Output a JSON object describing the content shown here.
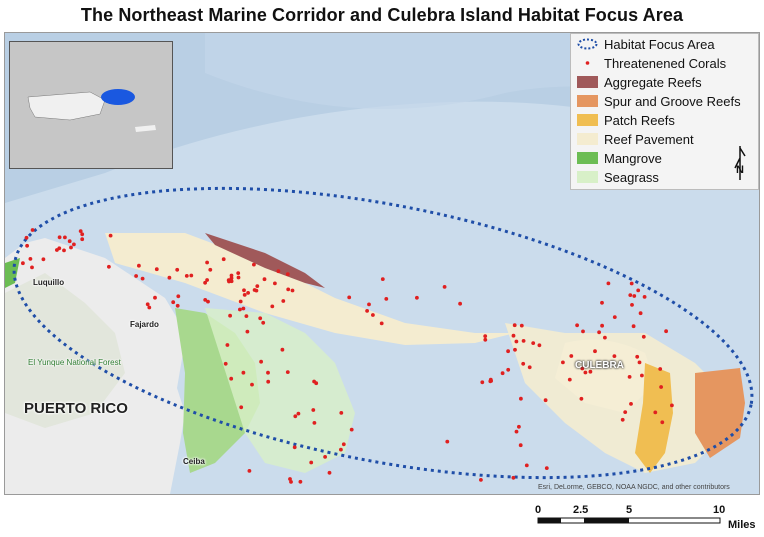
{
  "title": "The Northeast Marine Corridor and Culebra Island Habitat Focus Area",
  "legend": {
    "items": [
      {
        "label": "Habitat Focus Area",
        "symbol": "dashed-ellipse",
        "color": "#1f4ea8"
      },
      {
        "label": "Threatenened Corals",
        "symbol": "dot",
        "color": "#e02020"
      },
      {
        "label": "Aggregate Reefs",
        "symbol": "fill",
        "color": "#a0595a"
      },
      {
        "label": "Spur and Groove Reefs",
        "symbol": "fill",
        "color": "#e59660"
      },
      {
        "label": "Patch Reefs",
        "symbol": "fill",
        "color": "#f0be52"
      },
      {
        "label": "Reef Pavement",
        "symbol": "fill",
        "color": "#f4ecd0"
      },
      {
        "label": "Mangrove",
        "symbol": "fill",
        "color": "#6cbd54"
      },
      {
        "label": "Seagrass",
        "symbol": "fill",
        "color": "#d8f0c8"
      }
    ]
  },
  "places": {
    "luquillo": "Luquillo",
    "fajardo": "Fajardo",
    "el_yunque": "El Yunque National Forest",
    "puerto_rico": "PUERTO RICO",
    "culebra": "CULEBRA",
    "ceiba": "Ceiba"
  },
  "north_arrow": "N",
  "credits": "Esri, DeLorme, GEBCO, NOAA NGDC, and other contributors",
  "scale": {
    "ticks": [
      "0",
      "2.5",
      "5",
      "10"
    ],
    "units": "Miles"
  },
  "colors": {
    "ocean": "#d2e2f0",
    "land": "#ececec",
    "coral_points": "#e02020",
    "focus_area_outline": "#1f4ea8"
  }
}
